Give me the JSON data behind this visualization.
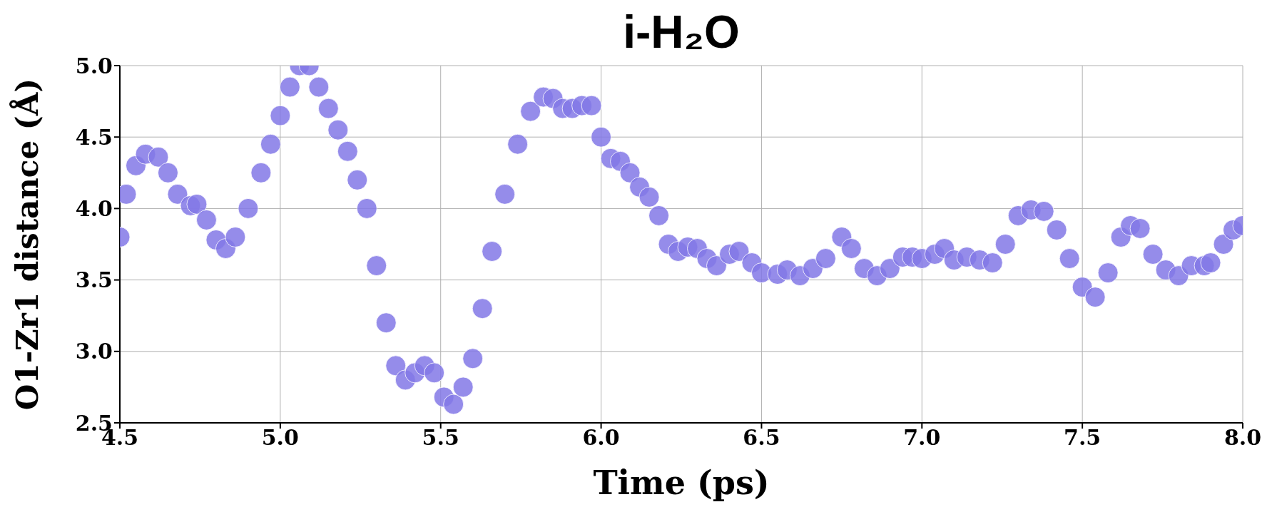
{
  "chart_data": {
    "type": "scatter",
    "title": "i-H₂O",
    "xlabel": "Time (ps)",
    "ylabel": "O1-Zr1 distance (Å)",
    "xlim": [
      4.5,
      8.0
    ],
    "ylim": [
      2.5,
      5.0
    ],
    "xticks": [
      {
        "value": 4.5,
        "label": "4.5"
      },
      {
        "value": 5,
        "label": "5.0"
      },
      {
        "value": 5.5,
        "label": "5.5"
      },
      {
        "value": 6,
        "label": "6.0"
      },
      {
        "value": 6.5,
        "label": "6.5"
      },
      {
        "value": 7,
        "label": "7.0"
      },
      {
        "value": 7.5,
        "label": "7.5"
      },
      {
        "value": 8,
        "label": "8.0"
      }
    ],
    "yticks": [
      {
        "value": 2.5,
        "label": "2.5"
      },
      {
        "value": 3,
        "label": "3.0"
      },
      {
        "value": 3.5,
        "label": "3.5"
      },
      {
        "value": 4,
        "label": "4.0"
      },
      {
        "value": 4.5,
        "label": "4.5"
      },
      {
        "value": 5,
        "label": "5.0"
      }
    ],
    "grid": true,
    "marker": "circle",
    "series": [
      {
        "color": "#8378e6",
        "x": [
          4.5,
          4.52,
          4.55,
          4.58,
          4.62,
          4.65,
          4.68,
          4.72,
          4.74,
          4.77,
          4.8,
          4.83,
          4.86,
          4.9,
          4.94,
          4.97,
          5.0,
          5.03,
          5.06,
          5.09,
          5.12,
          5.15,
          5.18,
          5.21,
          5.24,
          5.27,
          5.3,
          5.33,
          5.36,
          5.39,
          5.42,
          5.45,
          5.48,
          5.51,
          5.54,
          5.57,
          5.6,
          5.63,
          5.66,
          5.7,
          5.74,
          5.78,
          5.82,
          5.85,
          5.88,
          5.91,
          5.94,
          5.97,
          6.0,
          6.03,
          6.06,
          6.09,
          6.12,
          6.15,
          6.18,
          6.21,
          6.24,
          6.27,
          6.3,
          6.33,
          6.36,
          6.4,
          6.43,
          6.47,
          6.5,
          6.55,
          6.58,
          6.62,
          6.66,
          6.7,
          6.75,
          6.78,
          6.82,
          6.86,
          6.9,
          6.94,
          6.97,
          7.0,
          7.04,
          7.07,
          7.1,
          7.14,
          7.18,
          7.22,
          7.26,
          7.3,
          7.34,
          7.38,
          7.42,
          7.46,
          7.5,
          7.54,
          7.58,
          7.62,
          7.65,
          7.68,
          7.72,
          7.76,
          7.8,
          7.84,
          7.88,
          7.9,
          7.94,
          7.97,
          8.0
        ],
        "values": [
          3.8,
          4.1,
          4.3,
          4.38,
          4.36,
          4.25,
          4.1,
          4.02,
          4.03,
          3.92,
          3.78,
          3.72,
          3.8,
          4.0,
          4.25,
          4.45,
          4.65,
          4.85,
          5.0,
          5.0,
          4.85,
          4.7,
          4.55,
          4.4,
          4.2,
          4.0,
          3.6,
          3.2,
          2.9,
          2.8,
          2.85,
          2.9,
          2.85,
          2.68,
          2.63,
          2.75,
          2.95,
          3.3,
          3.7,
          4.1,
          4.45,
          4.68,
          4.78,
          4.77,
          4.7,
          4.7,
          4.72,
          4.72,
          4.5,
          4.35,
          4.33,
          4.25,
          4.15,
          4.08,
          3.95,
          3.75,
          3.7,
          3.73,
          3.72,
          3.65,
          3.6,
          3.68,
          3.7,
          3.62,
          3.55,
          3.54,
          3.57,
          3.53,
          3.58,
          3.65,
          3.8,
          3.72,
          3.58,
          3.53,
          3.58,
          3.66,
          3.66,
          3.65,
          3.68,
          3.72,
          3.64,
          3.66,
          3.64,
          3.62,
          3.75,
          3.95,
          3.99,
          3.98,
          3.85,
          3.65,
          3.45,
          3.38,
          3.55,
          3.8,
          3.88,
          3.86,
          3.68,
          3.57,
          3.53,
          3.6,
          3.6,
          3.62,
          3.75,
          3.85,
          3.88
        ]
      }
    ]
  }
}
